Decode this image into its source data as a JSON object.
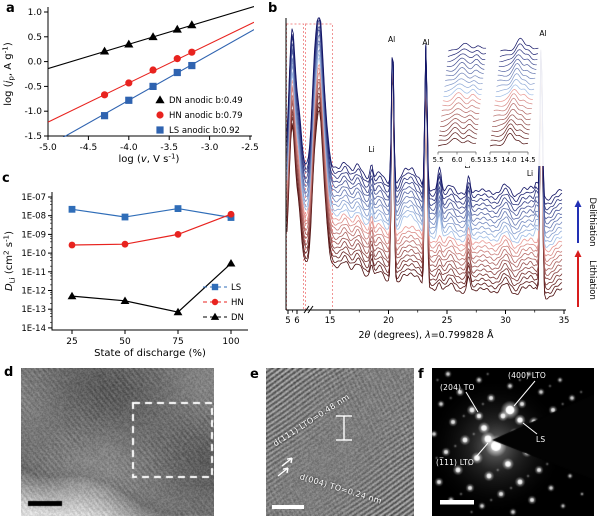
{
  "panel_labels": {
    "a": "a",
    "b": "b",
    "c": "c",
    "d": "d",
    "e": "e",
    "f": "f"
  },
  "chart_data": [
    {
      "id": "a",
      "type": "scatter",
      "xlabel": [
        {
          "t": "log ("
        },
        {
          "t": "v",
          "s": "i"
        },
        {
          "t": ", V s"
        },
        {
          "t": "-1",
          "s": "sup"
        },
        {
          "t": ")"
        }
      ],
      "ylabel": [
        {
          "t": "log ("
        },
        {
          "t": "j",
          "s": "i"
        },
        {
          "t": "p",
          "s": "sub"
        },
        {
          "t": ", A g"
        },
        {
          "t": "-1",
          "s": "sup"
        },
        {
          "t": ")"
        }
      ],
      "xlim": [
        -5.0,
        -2.5
      ],
      "ylim": [
        -1.5,
        1.0
      ],
      "xticks": [
        "-5.0",
        "-4.5",
        "-4.0",
        "-3.5",
        "-3.0",
        "-2.5"
      ],
      "yticks": [
        "1.0",
        "0.5",
        "0.0",
        "-0.5",
        "-1.0",
        "-1.5"
      ],
      "x": [
        -4.3,
        -4.0,
        -3.7,
        -3.4,
        -3.22
      ],
      "series": [
        {
          "name": "DN anodic b:0.49",
          "marker": "triangle",
          "color": "#000000",
          "y": [
            0.21,
            0.35,
            0.5,
            0.65,
            0.74
          ],
          "fit": {
            "slope": 0.49,
            "intercept": 2.31
          }
        },
        {
          "name": "HN anodic b:0.79",
          "marker": "circle",
          "color": "#e8231f",
          "y": [
            -0.67,
            -0.43,
            -0.17,
            0.06,
            0.19
          ],
          "fit": {
            "slope": 0.79,
            "intercept": 2.73
          }
        },
        {
          "name": "LS anodic b:0.92",
          "marker": "square",
          "color": "#2f63b0",
          "y": [
            -1.09,
            -0.78,
            -0.5,
            -0.22,
            -0.08
          ],
          "fit": {
            "slope": 0.92,
            "intercept": 2.9
          }
        }
      ]
    },
    {
      "id": "b",
      "type": "xrd-waterfall",
      "xlabel": [
        {
          "t": "2"
        },
        {
          "t": "θ",
          "s": "i"
        },
        {
          "t": " (degrees), "
        },
        {
          "t": "λ",
          "s": "i"
        },
        {
          "t": "=0.799828 Å"
        }
      ],
      "xticks_before_break": [
        "5",
        "6"
      ],
      "xticks_after_break": [
        "15",
        "20",
        "25",
        "30",
        "35"
      ],
      "n_scans": 22,
      "peak_labels": [
        {
          "el": "Li",
          "theta": 18.55
        },
        {
          "el": "Al",
          "theta": 20.35
        },
        {
          "el": "Al",
          "theta": 23.2
        },
        {
          "el": "Li",
          "theta": 26.85
        },
        {
          "el": "Li",
          "theta": 32.6
        },
        {
          "el": "Al",
          "theta": 33.05
        }
      ],
      "insets": [
        {
          "tick_labels": [
            "5.5",
            "6.0",
            "6.5"
          ]
        },
        {
          "tick_labels": [
            "13.5",
            "14.0",
            "14.5"
          ]
        }
      ],
      "direction_labels": [
        {
          "text": "Delithiation",
          "color": "#2230b4"
        },
        {
          "text": "Lithiation",
          "color": "#d81d1d"
        }
      ],
      "colors": {
        "bottom": "#4a0b0b",
        "mid_red": "#f2a19c",
        "mid_blue": "#a9c8ee",
        "top": "#101264"
      }
    },
    {
      "id": "c",
      "type": "line",
      "xlabel": [
        {
          "t": "State of discharge (%)"
        }
      ],
      "ylabel": [
        {
          "t": "D",
          "s": "i"
        },
        {
          "t": "Li",
          "s": "sub"
        },
        {
          "t": " (cm"
        },
        {
          "t": "2",
          "s": "sup"
        },
        {
          "t": " s"
        },
        {
          "t": "-1",
          "s": "sup"
        },
        {
          "t": ")"
        }
      ],
      "xticks": [
        "25",
        "50",
        "75",
        "100"
      ],
      "yticks": [
        "1E-07",
        "1E-08",
        "1E-09",
        "1E-10",
        "1E-11",
        "1E-12",
        "1E-13",
        "1E-14"
      ],
      "x": [
        25,
        50,
        75,
        100
      ],
      "series": [
        {
          "name": "LS",
          "marker": "square",
          "color": "#2f6db8",
          "y": [
            2.2e-08,
            8.5e-09,
            2.4e-08,
            8e-09
          ]
        },
        {
          "name": "HN",
          "marker": "circle",
          "color": "#e8231f",
          "y": [
            2.7e-10,
            3e-10,
            1e-09,
            1.2e-08
          ]
        },
        {
          "name": "DN",
          "marker": "triangle",
          "color": "#000000",
          "y": [
            5e-13,
            2.8e-13,
            7e-14,
            2.8e-11
          ]
        }
      ]
    }
  ],
  "panel_d": {
    "type": "TEM image",
    "has_scale_bar": true,
    "roi_box": "dashed square"
  },
  "panel_e": {
    "type": "HRTEM image",
    "annotation_top": "d(111) LTO=0.48 nm",
    "annotation_bottom": "d(004) TO=0.24 nm",
    "has_scale_bar": true
  },
  "panel_f": {
    "type": "SAED pattern",
    "labels": {
      "top_left": "(204) TO",
      "top_right": "(400) LTO",
      "right": "LS",
      "bottom_left": "(1̅11) LTO"
    },
    "has_scale_bar": true
  }
}
